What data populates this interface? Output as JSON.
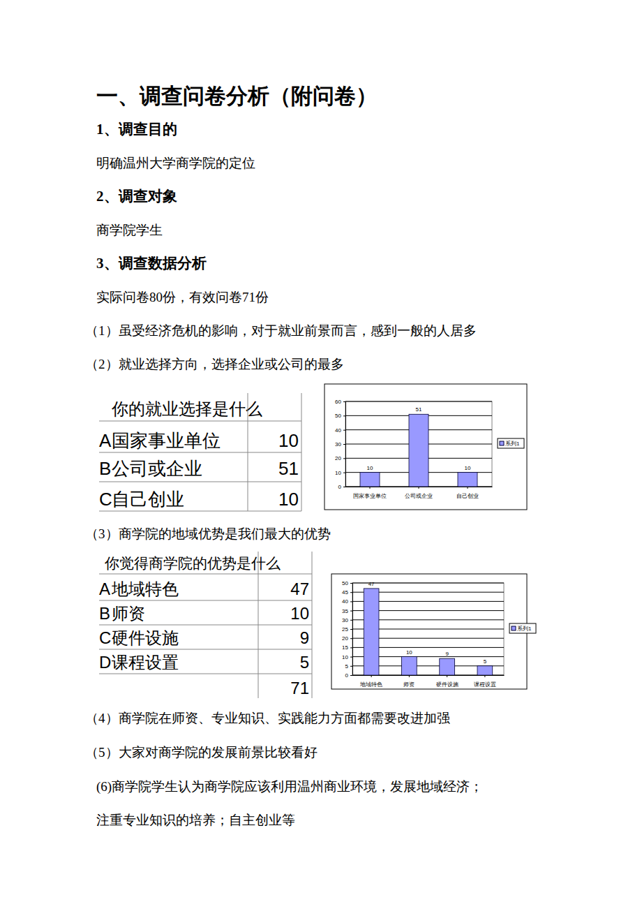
{
  "heading": "一、调查问卷分析（附问卷）",
  "sections": [
    {
      "title": "1、调查目的",
      "body": [
        "明确温州大学商学院的定位"
      ]
    },
    {
      "title": "2、调查对象",
      "body": [
        "商学院学生"
      ]
    },
    {
      "title": "3、调查数据分析",
      "body": [
        "实际问卷80份，有效问卷71份",
        "（1）虽受经济危机的影响，对于就业前景而言，感到一般的人居多",
        "（2）就业选择方向，选择企业或公司的最多"
      ]
    }
  ],
  "note_middle": "（3）商学院的地域优势是我们最大的优势",
  "notes_end": [
    "（4）商学院在师资、专业知识、实践能力方面都需要改进加强",
    "（5）大家对商学院的发展前景比较看好",
    "(6)商学院学生认为商学院应该利用温州商业环境，发展地域经济；",
    "注重专业知识的培养；自主创业等"
  ],
  "tables": [
    {
      "title": "你的就业选择是什么",
      "rows": [
        [
          "A",
          "国家事业单位",
          10
        ],
        [
          "B",
          "公司或企业",
          51
        ],
        [
          "C",
          "自己创业",
          10
        ]
      ]
    },
    {
      "title": "你觉得商学院的优势是什么",
      "rows": [
        [
          "A",
          "地域特色",
          47
        ],
        [
          "B",
          "师资",
          10
        ],
        [
          "C",
          "硬件设施",
          9
        ],
        [
          "D",
          "课程设置",
          5
        ]
      ],
      "total": 71
    }
  ],
  "chart_data": [
    {
      "type": "bar",
      "categories": [
        "国家事业单位",
        "公司或企业",
        "自己创业"
      ],
      "series": [
        {
          "name": "系列1",
          "color": "#9999ff",
          "values": [
            10,
            51,
            10
          ]
        }
      ],
      "ylim": [
        0,
        60
      ],
      "yticks": [
        0,
        10,
        20,
        30,
        40,
        50,
        60
      ],
      "grid": true,
      "legend": "right",
      "data_labels": true
    },
    {
      "type": "bar",
      "categories": [
        "地域特色",
        "师资",
        "硬件设施",
        "课程设置"
      ],
      "series": [
        {
          "name": "系列1",
          "color": "#9999ff",
          "values": [
            47,
            10,
            9,
            5
          ]
        }
      ],
      "ylim": [
        0,
        50
      ],
      "yticks": [
        0,
        5,
        10,
        15,
        20,
        25,
        30,
        35,
        40,
        45,
        50
      ],
      "grid": true,
      "legend": "right",
      "data_labels": true
    }
  ]
}
